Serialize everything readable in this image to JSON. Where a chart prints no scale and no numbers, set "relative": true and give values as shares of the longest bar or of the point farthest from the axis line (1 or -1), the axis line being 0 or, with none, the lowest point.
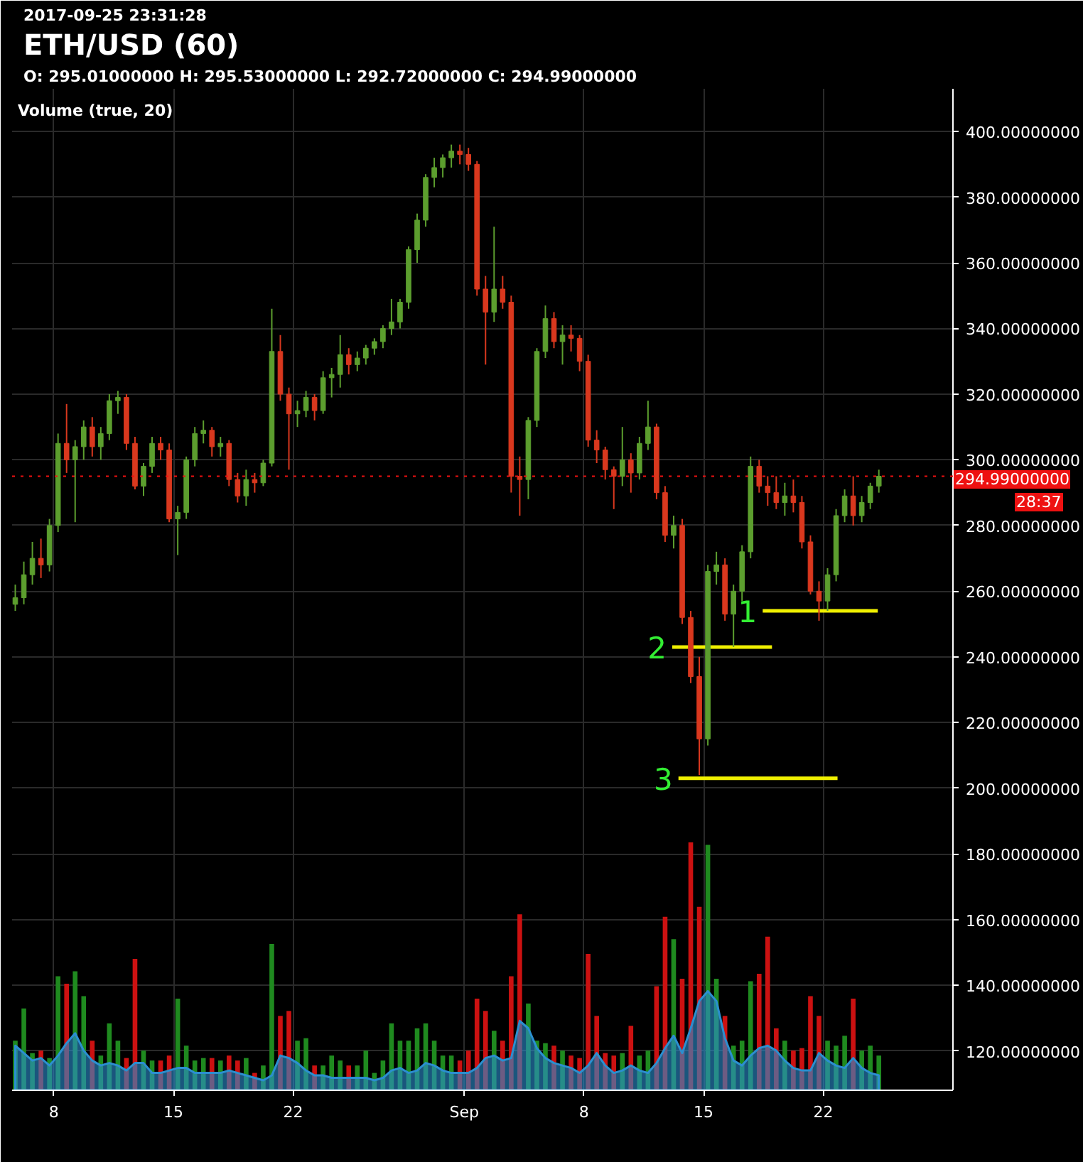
{
  "chart_data": [
    {
      "type": "candlestick",
      "title": "ETH/USD (60)",
      "subtitle": "O: 295.01000000 H: 295.53000000 L: 292.72000000 C: 294.99000000",
      "annotations": [
        "2017-09-25 23:31:28",
        "28:37"
      ],
      "x": [
        "2017-08-05T18:00",
        "2017-08-06T06:00",
        "2017-08-06T18:00",
        "2017-08-07T06:00",
        "2017-08-07T18:00",
        "2017-08-08T06:00",
        "2017-08-08T18:00",
        "2017-08-09T06:00",
        "2017-08-09T18:00",
        "2017-08-10T06:00",
        "2017-08-10T18:00",
        "2017-08-11T06:00",
        "2017-08-11T18:00",
        "2017-08-12T06:00",
        "2017-08-12T18:00",
        "2017-08-13T06:00",
        "2017-08-13T18:00",
        "2017-08-14T06:00",
        "2017-08-14T18:00",
        "2017-08-15T06:00",
        "2017-08-15T18:00",
        "2017-08-16T06:00",
        "2017-08-16T18:00",
        "2017-08-17T06:00",
        "2017-08-17T18:00",
        "2017-08-18T06:00",
        "2017-08-18T18:00",
        "2017-08-19T06:00",
        "2017-08-19T18:00",
        "2017-08-20T06:00",
        "2017-08-20T18:00",
        "2017-08-21T06:00",
        "2017-08-21T18:00",
        "2017-08-22T06:00",
        "2017-08-22T18:00",
        "2017-08-23T06:00",
        "2017-08-23T18:00",
        "2017-08-24T06:00",
        "2017-08-24T18:00",
        "2017-08-25T06:00",
        "2017-08-25T18:00",
        "2017-08-26T06:00",
        "2017-08-26T18:00",
        "2017-08-27T06:00",
        "2017-08-27T18:00",
        "2017-08-28T06:00",
        "2017-08-28T18:00",
        "2017-08-29T06:00",
        "2017-08-29T18:00",
        "2017-08-30T06:00",
        "2017-08-30T18:00",
        "2017-08-31T06:00",
        "2017-08-31T18:00",
        "2017-09-01T06:00",
        "2017-09-01T18:00",
        "2017-09-02T06:00",
        "2017-09-02T18:00",
        "2017-09-03T06:00",
        "2017-09-03T18:00",
        "2017-09-04T06:00",
        "2017-09-04T18:00",
        "2017-09-05T06:00",
        "2017-09-05T18:00",
        "2017-09-06T06:00",
        "2017-09-06T18:00",
        "2017-09-07T06:00",
        "2017-09-07T18:00",
        "2017-09-08T06:00",
        "2017-09-08T18:00",
        "2017-09-09T06:00",
        "2017-09-09T18:00",
        "2017-09-10T06:00",
        "2017-09-10T18:00",
        "2017-09-11T06:00",
        "2017-09-11T18:00",
        "2017-09-12T06:00",
        "2017-09-12T18:00",
        "2017-09-13T06:00",
        "2017-09-13T18:00",
        "2017-09-14T06:00",
        "2017-09-14T18:00",
        "2017-09-15T06:00",
        "2017-09-15T18:00",
        "2017-09-16T06:00",
        "2017-09-16T18:00",
        "2017-09-17T06:00",
        "2017-09-17T18:00",
        "2017-09-18T06:00",
        "2017-09-18T18:00",
        "2017-09-19T06:00",
        "2017-09-19T18:00",
        "2017-09-20T06:00",
        "2017-09-20T18:00",
        "2017-09-21T06:00",
        "2017-09-21T18:00",
        "2017-09-22T06:00",
        "2017-09-22T18:00",
        "2017-09-23T06:00",
        "2017-09-23T18:00",
        "2017-09-24T06:00",
        "2017-09-24T18:00",
        "2017-09-25T06:00"
      ],
      "ohlc": [
        [
          256,
          262,
          254,
          258
        ],
        [
          258,
          269,
          256,
          265
        ],
        [
          265,
          275,
          262,
          270
        ],
        [
          270,
          276,
          264,
          268
        ],
        [
          268,
          282,
          266,
          280
        ],
        [
          280,
          308,
          278,
          305
        ],
        [
          305,
          317,
          296,
          300
        ],
        [
          300,
          306,
          281,
          304
        ],
        [
          304,
          312,
          300,
          310
        ],
        [
          310,
          313,
          301,
          304
        ],
        [
          304,
          310,
          300,
          308
        ],
        [
          308,
          320,
          306,
          318
        ],
        [
          318,
          321,
          314,
          319
        ],
        [
          319,
          320,
          303,
          305
        ],
        [
          305,
          307,
          291,
          292
        ],
        [
          292,
          299,
          289,
          298
        ],
        [
          298,
          307,
          296,
          305
        ],
        [
          305,
          307,
          300,
          303
        ],
        [
          303,
          305,
          281,
          282
        ],
        [
          282,
          286,
          271,
          284
        ],
        [
          284,
          301,
          282,
          300
        ],
        [
          300,
          310,
          298,
          308
        ],
        [
          308,
          312,
          305,
          309
        ],
        [
          309,
          310,
          301,
          304
        ],
        [
          304,
          307,
          301,
          305
        ],
        [
          305,
          306,
          292,
          294
        ],
        [
          294,
          296,
          287,
          289
        ],
        [
          289,
          297,
          286,
          294
        ],
        [
          294,
          296,
          290,
          293
        ],
        [
          293,
          300,
          292,
          299
        ],
        [
          299,
          346,
          298,
          333
        ],
        [
          333,
          338,
          318,
          320
        ],
        [
          320,
          322,
          297,
          314
        ],
        [
          314,
          318,
          310,
          315
        ],
        [
          315,
          321,
          313,
          319
        ],
        [
          319,
          320,
          312,
          315
        ],
        [
          315,
          327,
          314,
          325
        ],
        [
          325,
          328,
          319,
          326
        ],
        [
          326,
          338,
          322,
          332
        ],
        [
          332,
          334,
          326,
          329
        ],
        [
          329,
          333,
          327,
          331
        ],
        [
          331,
          335,
          329,
          334
        ],
        [
          334,
          337,
          332,
          336
        ],
        [
          336,
          341,
          334,
          340
        ],
        [
          340,
          349,
          338,
          342
        ],
        [
          342,
          349,
          340,
          348
        ],
        [
          348,
          365,
          346,
          364
        ],
        [
          364,
          375,
          360,
          373
        ],
        [
          373,
          387,
          371,
          386
        ],
        [
          386,
          392,
          383,
          389
        ],
        [
          389,
          393,
          386,
          392
        ],
        [
          392,
          396,
          389,
          394
        ],
        [
          394,
          396,
          390,
          393
        ],
        [
          393,
          395,
          388,
          390
        ],
        [
          390,
          391,
          350,
          352
        ],
        [
          352,
          356,
          329,
          345
        ],
        [
          345,
          371,
          342,
          352
        ],
        [
          352,
          356,
          346,
          348
        ],
        [
          348,
          350,
          290,
          295
        ],
        [
          295,
          301,
          283,
          294
        ],
        [
          294,
          313,
          288,
          312
        ],
        [
          312,
          334,
          310,
          333
        ],
        [
          333,
          347,
          331,
          343
        ],
        [
          343,
          345,
          334,
          336
        ],
        [
          336,
          341,
          329,
          338
        ],
        [
          338,
          341,
          333,
          337
        ],
        [
          337,
          338,
          327,
          330
        ],
        [
          330,
          332,
          304,
          306
        ],
        [
          306,
          309,
          299,
          303
        ],
        [
          303,
          304,
          294,
          297
        ],
        [
          297,
          298,
          285,
          295
        ],
        [
          295,
          310,
          292,
          300
        ],
        [
          300,
          302,
          290,
          296
        ],
        [
          296,
          307,
          294,
          305
        ],
        [
          305,
          318,
          303,
          310
        ],
        [
          310,
          311,
          288,
          290
        ],
        [
          290,
          292,
          275,
          277
        ],
        [
          277,
          283,
          273,
          280
        ],
        [
          280,
          282,
          250,
          252
        ],
        [
          252,
          254,
          232,
          234
        ],
        [
          234,
          240,
          204,
          215
        ],
        [
          215,
          268,
          213,
          266
        ],
        [
          266,
          272,
          262,
          268
        ],
        [
          268,
          270,
          251,
          253
        ],
        [
          253,
          262,
          243,
          260
        ],
        [
          260,
          274,
          257,
          272
        ],
        [
          272,
          301,
          270,
          298
        ],
        [
          298,
          300,
          290,
          292
        ],
        [
          292,
          295,
          286,
          290
        ],
        [
          290,
          295,
          285,
          287
        ],
        [
          287,
          293,
          283,
          289
        ],
        [
          289,
          294,
          284,
          287
        ],
        [
          287,
          289,
          273,
          275
        ],
        [
          275,
          277,
          259,
          260
        ],
        [
          260,
          263,
          251,
          257
        ],
        [
          257,
          267,
          254,
          265
        ],
        [
          265,
          285,
          263,
          283
        ],
        [
          283,
          291,
          281,
          289
        ],
        [
          289,
          295,
          280,
          283
        ],
        [
          283,
          289,
          281,
          287
        ],
        [
          287,
          293,
          285,
          292
        ],
        [
          292,
          297,
          290,
          295
        ]
      ],
      "colors": [
        "#5c9e2e",
        "#5c9e2e",
        "#5c9e2e",
        "#d9381e",
        "#5c9e2e",
        "#5c9e2e",
        "#d9381e",
        "#5c9e2e",
        "#5c9e2e",
        "#d9381e",
        "#5c9e2e",
        "#5c9e2e",
        "#5c9e2e",
        "#d9381e",
        "#d9381e",
        "#5c9e2e",
        "#5c9e2e",
        "#d9381e",
        "#d9381e",
        "#5c9e2e",
        "#5c9e2e",
        "#5c9e2e",
        "#5c9e2e",
        "#d9381e",
        "#5c9e2e",
        "#d9381e",
        "#d9381e",
        "#5c9e2e",
        "#d9381e",
        "#5c9e2e",
        "#5c9e2e",
        "#d9381e",
        "#d9381e",
        "#5c9e2e",
        "#5c9e2e",
        "#d9381e",
        "#5c9e2e",
        "#5c9e2e",
        "#5c9e2e",
        "#d9381e",
        "#5c9e2e",
        "#5c9e2e",
        "#5c9e2e",
        "#5c9e2e",
        "#5c9e2e",
        "#5c9e2e",
        "#5c9e2e",
        "#5c9e2e",
        "#5c9e2e",
        "#5c9e2e",
        "#5c9e2e",
        "#5c9e2e",
        "#d9381e",
        "#d9381e",
        "#d9381e",
        "#d9381e",
        "#5c9e2e",
        "#d9381e",
        "#d9381e",
        "#d9381e",
        "#5c9e2e",
        "#5c9e2e",
        "#5c9e2e",
        "#d9381e",
        "#5c9e2e",
        "#d9381e",
        "#d9381e",
        "#d9381e",
        "#d9381e",
        "#d9381e",
        "#d9381e",
        "#5c9e2e",
        "#d9381e",
        "#5c9e2e",
        "#5c9e2e",
        "#d9381e",
        "#d9381e",
        "#5c9e2e",
        "#d9381e",
        "#d9381e",
        "#d9381e",
        "#5c9e2e",
        "#5c9e2e",
        "#d9381e",
        "#5c9e2e",
        "#5c9e2e",
        "#5c9e2e",
        "#d9381e",
        "#d9381e",
        "#d9381e",
        "#5c9e2e",
        "#d9381e",
        "#d9381e",
        "#d9381e",
        "#d9381e",
        "#5c9e2e",
        "#5c9e2e",
        "#5c9e2e",
        "#d9381e",
        "#5c9e2e",
        "#5c9e2e",
        "#5c9e2e"
      ],
      "series": [
        {
          "type": "line",
          "name": "1",
          "color": "#f0f000",
          "x": [
            "2017-09-18T11:00",
            "2017-09-25T04:30"
          ],
          "values": [
            254,
            254
          ]
        },
        {
          "type": "line",
          "name": "2",
          "color": "#f0f000",
          "x": [
            "2017-09-13T04:00",
            "2017-09-19T00:00"
          ],
          "values": [
            243,
            243
          ]
        },
        {
          "type": "line",
          "name": "3",
          "color": "#f0f000",
          "x": [
            "2017-09-13T12:45",
            "2017-09-22T20:00"
          ],
          "values": [
            203,
            203
          ]
        }
      ],
      "xlim": [
        "2017-08-05T13:30",
        "2017-09-29T14:00"
      ],
      "xticks": [
        {
          "value": "2017-08-08",
          "label": "8"
        },
        {
          "value": "2017-08-15",
          "label": "15"
        },
        {
          "value": "2017-08-22",
          "label": "22"
        },
        {
          "value": "2017-09-01",
          "label": "Sep"
        },
        {
          "value": "2017-09-08",
          "label": "8"
        },
        {
          "value": "2017-09-15",
          "label": "15"
        },
        {
          "value": "2017-09-22",
          "label": "22"
        }
      ],
      "ylim": [
        108,
        413
      ],
      "yticks": [
        {
          "value": 120,
          "label": "120.00000000"
        },
        {
          "value": 140,
          "label": "140.00000000"
        },
        {
          "value": 160,
          "label": "160.00000000"
        },
        {
          "value": 180,
          "label": "180.00000000"
        },
        {
          "value": 200,
          "label": "200.00000000"
        },
        {
          "value": 220,
          "label": "220.00000000"
        },
        {
          "value": 240,
          "label": "240.00000000"
        },
        {
          "value": 260,
          "label": "260.00000000"
        },
        {
          "value": 280,
          "label": "280.00000000"
        },
        {
          "value": 300,
          "label": "300.00000000"
        },
        {
          "value": 320,
          "label": "320.00000000"
        },
        {
          "value": 340,
          "label": "340.00000000"
        },
        {
          "value": 360,
          "label": "360.00000000"
        },
        {
          "value": 380,
          "label": "380.00000000"
        },
        {
          "value": 400,
          "label": "400.00000000"
        }
      ],
      "ref_lines": [
        {
          "axis": "y",
          "value": 294.99,
          "label": "294.99000000",
          "color": "#ee1111",
          "line_style": "dotted"
        }
      ],
      "grid": true
    },
    {
      "type": "bar",
      "title": "Volume (true, 20)",
      "relative": true,
      "tick_labels": false,
      "x": [
        "2017-08-05T18:00",
        "2017-08-06T06:00",
        "2017-08-06T18:00",
        "2017-08-07T06:00",
        "2017-08-07T18:00",
        "2017-08-08T06:00",
        "2017-08-08T18:00",
        "2017-08-09T06:00",
        "2017-08-09T18:00",
        "2017-08-10T06:00",
        "2017-08-10T18:00",
        "2017-08-11T06:00",
        "2017-08-11T18:00",
        "2017-08-12T06:00",
        "2017-08-12T18:00",
        "2017-08-13T06:00",
        "2017-08-13T18:00",
        "2017-08-14T06:00",
        "2017-08-14T18:00",
        "2017-08-15T06:00",
        "2017-08-15T18:00",
        "2017-08-16T06:00",
        "2017-08-16T18:00",
        "2017-08-17T06:00",
        "2017-08-17T18:00",
        "2017-08-18T06:00",
        "2017-08-18T18:00",
        "2017-08-19T06:00",
        "2017-08-19T18:00",
        "2017-08-20T06:00",
        "2017-08-20T18:00",
        "2017-08-21T06:00",
        "2017-08-21T18:00",
        "2017-08-22T06:00",
        "2017-08-22T18:00",
        "2017-08-23T06:00",
        "2017-08-23T18:00",
        "2017-08-24T06:00",
        "2017-08-24T18:00",
        "2017-08-25T06:00",
        "2017-08-25T18:00",
        "2017-08-26T06:00",
        "2017-08-26T18:00",
        "2017-08-27T06:00",
        "2017-08-27T18:00",
        "2017-08-28T06:00",
        "2017-08-28T18:00",
        "2017-08-29T06:00",
        "2017-08-29T18:00",
        "2017-08-30T06:00",
        "2017-08-30T18:00",
        "2017-08-31T06:00",
        "2017-08-31T18:00",
        "2017-09-01T06:00",
        "2017-09-01T18:00",
        "2017-09-02T06:00",
        "2017-09-02T18:00",
        "2017-09-03T06:00",
        "2017-09-03T18:00",
        "2017-09-04T06:00",
        "2017-09-04T18:00",
        "2017-09-05T06:00",
        "2017-09-05T18:00",
        "2017-09-06T06:00",
        "2017-09-06T18:00",
        "2017-09-07T06:00",
        "2017-09-07T18:00",
        "2017-09-08T06:00",
        "2017-09-08T18:00",
        "2017-09-09T06:00",
        "2017-09-09T18:00",
        "2017-09-10T06:00",
        "2017-09-10T18:00",
        "2017-09-11T06:00",
        "2017-09-11T18:00",
        "2017-09-12T06:00",
        "2017-09-12T18:00",
        "2017-09-13T06:00",
        "2017-09-13T18:00",
        "2017-09-14T06:00",
        "2017-09-14T18:00",
        "2017-09-15T06:00",
        "2017-09-15T18:00",
        "2017-09-16T06:00",
        "2017-09-16T18:00",
        "2017-09-17T06:00",
        "2017-09-17T18:00",
        "2017-09-18T06:00",
        "2017-09-18T18:00",
        "2017-09-19T06:00",
        "2017-09-19T18:00",
        "2017-09-20T06:00",
        "2017-09-20T18:00",
        "2017-09-21T06:00",
        "2017-09-21T18:00",
        "2017-09-22T06:00",
        "2017-09-22T18:00",
        "2017-09-23T06:00",
        "2017-09-23T18:00",
        "2017-09-24T06:00",
        "2017-09-24T18:00",
        "2017-09-25T06:00"
      ],
      "xlim": [
        "2017-08-05T13:30",
        "2017-09-29T14:00"
      ],
      "series": [
        {
          "type": "bar",
          "values": [
            0.2,
            0.33,
            0.15,
            0.16,
            0.13,
            0.46,
            0.43,
            0.48,
            0.38,
            0.2,
            0.14,
            0.27,
            0.2,
            0.13,
            0.53,
            0.16,
            0.12,
            0.12,
            0.14,
            0.37,
            0.18,
            0.12,
            0.13,
            0.13,
            0.12,
            0.14,
            0.12,
            0.13,
            0.07,
            0.1,
            0.59,
            0.3,
            0.32,
            0.2,
            0.21,
            0.1,
            0.1,
            0.14,
            0.12,
            0.1,
            0.1,
            0.16,
            0.07,
            0.12,
            0.27,
            0.2,
            0.2,
            0.25,
            0.27,
            0.2,
            0.14,
            0.14,
            0.12,
            0.16,
            0.37,
            0.32,
            0.24,
            0.2,
            0.46,
            0.71,
            0.35,
            0.2,
            0.19,
            0.18,
            0.16,
            0.14,
            0.13,
            0.55,
            0.3,
            0.15,
            0.14,
            0.15,
            0.26,
            0.14,
            0.16,
            0.42,
            0.7,
            0.61,
            0.45,
            1,
            0.74,
            0.99,
            0.45,
            0.3,
            0.18,
            0.2,
            0.44,
            0.47,
            0.62,
            0.25,
            0.2,
            0.16,
            0.17,
            0.38,
            0.3,
            0.2,
            0.18,
            0.22,
            0.37,
            0.16,
            0.18,
            0.14
          ],
          "colors": [
            "#1f8a1f",
            "#1f8a1f",
            "#1f8a1f",
            "#cc1111",
            "#1f8a1f",
            "#1f8a1f",
            "#cc1111",
            "#1f8a1f",
            "#1f8a1f",
            "#cc1111",
            "#1f8a1f",
            "#1f8a1f",
            "#1f8a1f",
            "#cc1111",
            "#cc1111",
            "#1f8a1f",
            "#1f8a1f",
            "#cc1111",
            "#cc1111",
            "#1f8a1f",
            "#1f8a1f",
            "#1f8a1f",
            "#1f8a1f",
            "#cc1111",
            "#1f8a1f",
            "#cc1111",
            "#cc1111",
            "#1f8a1f",
            "#cc1111",
            "#1f8a1f",
            "#1f8a1f",
            "#cc1111",
            "#cc1111",
            "#1f8a1f",
            "#1f8a1f",
            "#cc1111",
            "#1f8a1f",
            "#1f8a1f",
            "#1f8a1f",
            "#cc1111",
            "#1f8a1f",
            "#1f8a1f",
            "#1f8a1f",
            "#1f8a1f",
            "#1f8a1f",
            "#1f8a1f",
            "#1f8a1f",
            "#1f8a1f",
            "#1f8a1f",
            "#1f8a1f",
            "#1f8a1f",
            "#1f8a1f",
            "#cc1111",
            "#cc1111",
            "#cc1111",
            "#cc1111",
            "#1f8a1f",
            "#cc1111",
            "#cc1111",
            "#cc1111",
            "#1f8a1f",
            "#1f8a1f",
            "#1f8a1f",
            "#cc1111",
            "#1f8a1f",
            "#cc1111",
            "#cc1111",
            "#cc1111",
            "#cc1111",
            "#cc1111",
            "#cc1111",
            "#1f8a1f",
            "#cc1111",
            "#1f8a1f",
            "#1f8a1f",
            "#cc1111",
            "#cc1111",
            "#1f8a1f",
            "#cc1111",
            "#cc1111",
            "#cc1111",
            "#1f8a1f",
            "#1f8a1f",
            "#cc1111",
            "#1f8a1f",
            "#1f8a1f",
            "#1f8a1f",
            "#cc1111",
            "#cc1111",
            "#cc1111",
            "#1f8a1f",
            "#cc1111",
            "#cc1111",
            "#cc1111",
            "#cc1111",
            "#1f8a1f",
            "#1f8a1f",
            "#1f8a1f",
            "#cc1111",
            "#1f8a1f",
            "#1f8a1f",
            "#1f8a1f"
          ]
        },
        {
          "type": "area",
          "color": "#2b8fd0",
          "values": [
            0.18,
            0.15,
            0.12,
            0.13,
            0.1,
            0.14,
            0.19,
            0.23,
            0.16,
            0.12,
            0.1,
            0.11,
            0.1,
            0.08,
            0.11,
            0.11,
            0.07,
            0.07,
            0.08,
            0.09,
            0.09,
            0.07,
            0.07,
            0.07,
            0.07,
            0.08,
            0.07,
            0.06,
            0.05,
            0.04,
            0.06,
            0.14,
            0.13,
            0.11,
            0.08,
            0.06,
            0.06,
            0.05,
            0.05,
            0.05,
            0.05,
            0.05,
            0.04,
            0.05,
            0.08,
            0.09,
            0.07,
            0.08,
            0.11,
            0.1,
            0.08,
            0.07,
            0.07,
            0.07,
            0.09,
            0.13,
            0.14,
            0.12,
            0.13,
            0.28,
            0.25,
            0.17,
            0.13,
            0.11,
            0.1,
            0.09,
            0.07,
            0.1,
            0.15,
            0.1,
            0.07,
            0.08,
            0.1,
            0.08,
            0.07,
            0.11,
            0.17,
            0.22,
            0.15,
            0.25,
            0.36,
            0.4,
            0.36,
            0.21,
            0.12,
            0.1,
            0.14,
            0.17,
            0.18,
            0.16,
            0.12,
            0.09,
            0.08,
            0.08,
            0.15,
            0.12,
            0.1,
            0.09,
            0.13,
            0.09,
            0.07,
            0.06
          ]
        }
      ]
    }
  ]
}
